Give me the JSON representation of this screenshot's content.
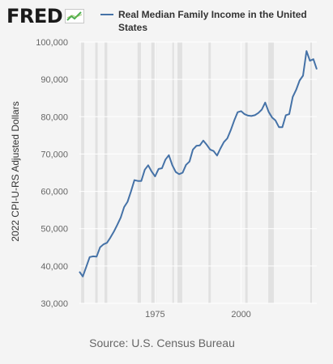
{
  "header": {
    "logo_text": "FRED",
    "logo_icon": "chart-line-icon"
  },
  "legend": {
    "label": "Real Median Family Income in the United States",
    "color": "#4572a7"
  },
  "colors": {
    "line": "#4572a7",
    "recession": "#e1e1e1",
    "grid": "#ffffff",
    "plot_bg": "#f4f4f4"
  },
  "source": "Source: U.S. Census Bureau",
  "chart_data": {
    "type": "line",
    "title": "",
    "xlabel": "",
    "ylabel": "2022 CPI-U-RS Adjusted Dollars",
    "xlim": [
      1953,
      2022
    ],
    "ylim": [
      30000,
      100000
    ],
    "x_ticks": [
      1975,
      2000
    ],
    "y_ticks": [
      30000,
      40000,
      50000,
      60000,
      70000,
      80000,
      90000,
      100000
    ],
    "y_tick_labels": [
      "30,000",
      "40,000",
      "50,000",
      "60,000",
      "70,000",
      "80,000",
      "90,000",
      "100,000"
    ],
    "grid": true,
    "recessions": [
      [
        1953.5,
        1954.4
      ],
      [
        1957.6,
        1958.3
      ],
      [
        1960.3,
        1961.1
      ],
      [
        1969.9,
        1970.9
      ],
      [
        1973.9,
        1975.2
      ],
      [
        1980.0,
        1980.5
      ],
      [
        1981.5,
        1982.9
      ],
      [
        1990.5,
        1991.2
      ],
      [
        2001.2,
        2001.9
      ],
      [
        2007.9,
        2009.5
      ],
      [
        2020.1,
        2020.4
      ]
    ],
    "series": [
      {
        "name": "Real Median Family Income in the United States",
        "x": [
          1953,
          1954,
          1955,
          1956,
          1957,
          1958,
          1959,
          1960,
          1961,
          1962,
          1963,
          1964,
          1965,
          1966,
          1967,
          1968,
          1969,
          1970,
          1971,
          1972,
          1973,
          1974,
          1975,
          1976,
          1977,
          1978,
          1979,
          1980,
          1981,
          1982,
          1983,
          1984,
          1985,
          1986,
          1987,
          1988,
          1989,
          1990,
          1991,
          1992,
          1993,
          1994,
          1995,
          1996,
          1997,
          1998,
          1999,
          2000,
          2001,
          2002,
          2003,
          2004,
          2005,
          2006,
          2007,
          2008,
          2009,
          2010,
          2011,
          2012,
          2013,
          2014,
          2015,
          2016,
          2017,
          2018,
          2019,
          2020,
          2021,
          2022
        ],
        "y": [
          38500,
          37200,
          39800,
          42400,
          42600,
          42500,
          45000,
          45800,
          46200,
          47600,
          49200,
          51000,
          53000,
          55800,
          57200,
          60000,
          63000,
          62800,
          62800,
          65800,
          67000,
          65300,
          64000,
          66000,
          66200,
          68500,
          69700,
          67000,
          65200,
          64600,
          65000,
          67100,
          68000,
          71200,
          72200,
          72300,
          73600,
          72500,
          71200,
          70800,
          69600,
          71500,
          73200,
          74200,
          76400,
          79000,
          81200,
          81500,
          80700,
          80300,
          80200,
          80400,
          81000,
          81900,
          83800,
          81300,
          79800,
          79000,
          77200,
          77200,
          80400,
          80700,
          85300,
          87200,
          89700,
          91000,
          97600,
          95000,
          95400,
          92700
        ]
      }
    ]
  }
}
